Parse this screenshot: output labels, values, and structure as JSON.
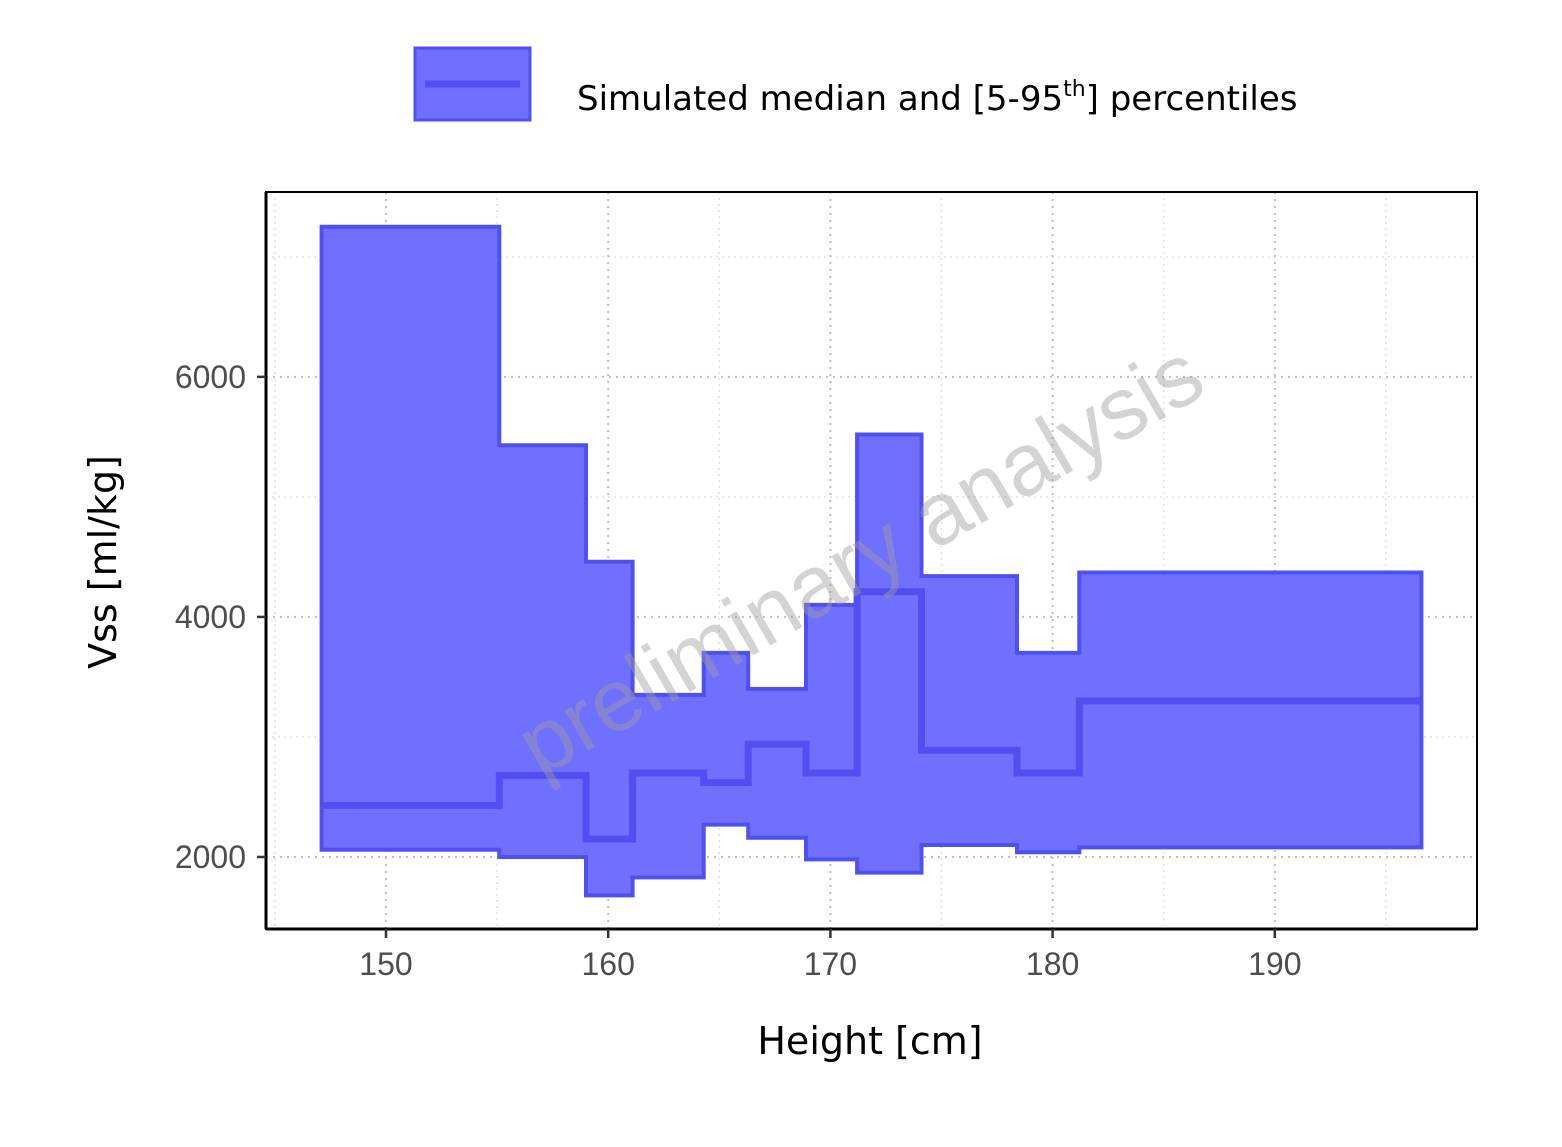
{
  "legend": {
    "label_main": "Simulated median and [5-95",
    "label_sup": "th",
    "label_tail": "] percentiles"
  },
  "watermark": "preliminary analysis",
  "colors": {
    "ribbon_fill": "#7070ff",
    "line": "#4f4ff2",
    "grid_major": "#bfbfbf",
    "grid_minor": "#e0e0e0",
    "watermark": "#9e9e9e"
  },
  "chart_data": {
    "type": "area",
    "step": true,
    "xlabel": "Height [cm]",
    "ylabel": "Vss [ml/kg]",
    "xlim": [
      144.6,
      199.1
    ],
    "ylim": [
      1400,
      7540
    ],
    "x_ticks": [
      150,
      160,
      170,
      180,
      190
    ],
    "y_ticks": [
      2000,
      4000,
      6000
    ],
    "grid": true,
    "legend_position": "top",
    "x_edges": [
      147.1,
      155.1,
      159.0,
      161.1,
      164.3,
      166.3,
      168.9,
      171.2,
      174.1,
      178.4,
      181.2,
      196.6
    ],
    "series": [
      {
        "name": "Simulated median and [5-95th] percentiles",
        "median": [
          2430,
          2680,
          2150,
          2700,
          2620,
          2940,
          2700,
          4210,
          2890,
          2700,
          3300
        ],
        "p5": [
          2060,
          2000,
          1680,
          1830,
          2270,
          2160,
          1980,
          1870,
          2100,
          2040,
          2080
        ],
        "p95": [
          7250,
          5430,
          4460,
          3350,
          3700,
          3400,
          4100,
          5520,
          4340,
          3700,
          4370
        ]
      }
    ]
  }
}
